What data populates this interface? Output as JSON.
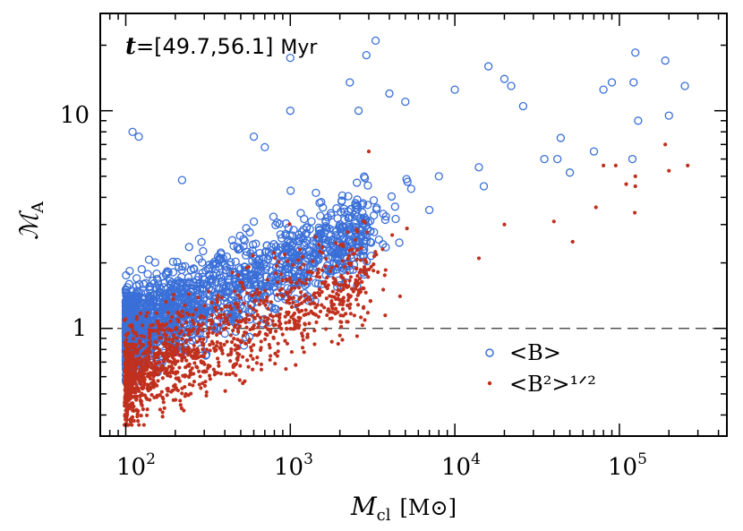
{
  "chart_data": {
    "type": "scatter",
    "xscale": "log",
    "yscale": "log",
    "xlim": [
      70,
      450000
    ],
    "ylim": [
      0.32,
      28
    ],
    "x_ticks": [
      {
        "value": 100,
        "base": "10",
        "exp": "2"
      },
      {
        "value": 1000,
        "base": "10",
        "exp": "3"
      },
      {
        "value": 10000,
        "base": "10",
        "exp": "4"
      },
      {
        "value": 100000,
        "base": "10",
        "exp": "5"
      }
    ],
    "y_ticks": [
      {
        "value": 1,
        "label": "1"
      },
      {
        "value": 10,
        "label": "10"
      }
    ],
    "xlabel": {
      "symbol": "M",
      "subscript": "cl",
      "unit": "[M⊙]"
    },
    "ylabel": {
      "symbol": "ℳ",
      "subscript": "A"
    },
    "annotation": {
      "var": "t",
      "text": "=[49.7,56.1]",
      "unit": "Myr"
    },
    "reference_line": {
      "y": 1,
      "style": "dashed"
    },
    "series": [
      {
        "name": "<B>",
        "marker": "open-circle",
        "color": "#3a6fd8"
      },
      {
        "name": "<B²>¹ᐟ²",
        "marker": "filled-dot",
        "color": "#c0301e"
      }
    ],
    "legend": {
      "items": [
        "<B>",
        "<B²>¹ᐟ²"
      ],
      "placement": "lower-right"
    },
    "series_points": {
      "<B>": [
        [
          110,
          8.0
        ],
        [
          120,
          7.6
        ],
        [
          3300,
          21
        ],
        [
          1000,
          17.5
        ],
        [
          2900,
          18
        ],
        [
          2300,
          13.5
        ],
        [
          2600,
          10.0
        ],
        [
          1000,
          10.0
        ],
        [
          700,
          6.8
        ],
        [
          600,
          7.6
        ],
        [
          4000,
          12
        ],
        [
          5000,
          11
        ],
        [
          10000,
          12.5
        ],
        [
          16000,
          16
        ],
        [
          22000,
          13
        ],
        [
          26000,
          10.5
        ],
        [
          20000,
          14
        ],
        [
          44000,
          7.5
        ],
        [
          50000,
          5.2
        ],
        [
          80000,
          12.5
        ],
        [
          90000,
          13.5
        ],
        [
          125000,
          18.5
        ],
        [
          122000,
          13.5
        ],
        [
          130000,
          9.0
        ],
        [
          190000,
          17
        ],
        [
          200000,
          9.5
        ],
        [
          250000,
          13
        ],
        [
          70000,
          6.5
        ],
        [
          35000,
          6.0
        ],
        [
          42000,
          6.0
        ],
        [
          120000,
          6.0
        ],
        [
          14000,
          5.5
        ],
        [
          8000,
          5.0
        ],
        [
          7000,
          3.5
        ],
        [
          15000,
          4.5
        ],
        [
          220,
          4.8
        ]
      ],
      "<B²>¹ᐟ²": [
        [
          40000,
          3.1
        ],
        [
          52000,
          2.5
        ],
        [
          72000,
          3.6
        ],
        [
          80000,
          5.6
        ],
        [
          95000,
          5.6
        ],
        [
          124000,
          3.4
        ],
        [
          125000,
          4.5
        ],
        [
          125000,
          5.0
        ],
        [
          190000,
          7.0
        ],
        [
          200000,
          5.3
        ],
        [
          260000,
          5.6
        ],
        [
          110000,
          4.6
        ],
        [
          20000,
          3.0
        ],
        [
          14000,
          2.1
        ],
        [
          3000,
          6.5
        ]
      ]
    },
    "bulk_scatter": {
      "note": "dense cloud of points concentrated at M_cl 100-2000 Msun",
      "x_range": [
        100,
        3000
      ],
      "y_range": [
        0.35,
        5
      ]
    }
  }
}
